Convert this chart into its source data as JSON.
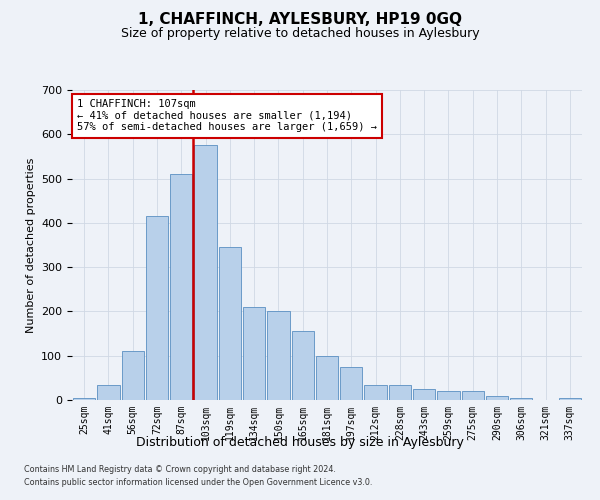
{
  "title": "1, CHAFFINCH, AYLESBURY, HP19 0GQ",
  "subtitle": "Size of property relative to detached houses in Aylesbury",
  "xlabel": "Distribution of detached houses by size in Aylesbury",
  "ylabel": "Number of detached properties",
  "categories": [
    "25sqm",
    "41sqm",
    "56sqm",
    "72sqm",
    "87sqm",
    "103sqm",
    "119sqm",
    "134sqm",
    "150sqm",
    "165sqm",
    "181sqm",
    "197sqm",
    "212sqm",
    "228sqm",
    "243sqm",
    "259sqm",
    "275sqm",
    "290sqm",
    "306sqm",
    "321sqm",
    "337sqm"
  ],
  "bar_heights": [
    5,
    35,
    110,
    415,
    510,
    575,
    345,
    210,
    200,
    155,
    100,
    75,
    35,
    35,
    25,
    20,
    20,
    10,
    5,
    0,
    5
  ],
  "bar_color": "#b8d0ea",
  "bar_edge_color": "#5a8fc2",
  "vline_index": 5,
  "vline_color": "#cc0000",
  "annotation_line1": "1 CHAFFINCH: 107sqm",
  "annotation_line2": "← 41% of detached houses are smaller (1,194)",
  "annotation_line3": "57% of semi-detached houses are larger (1,659) →",
  "annotation_box_facecolor": "#ffffff",
  "annotation_box_edgecolor": "#cc0000",
  "ylim": [
    0,
    700
  ],
  "yticks": [
    0,
    100,
    200,
    300,
    400,
    500,
    600,
    700
  ],
  "footnote1": "Contains HM Land Registry data © Crown copyright and database right 2024.",
  "footnote2": "Contains public sector information licensed under the Open Government Licence v3.0.",
  "bg_color": "#eef2f8",
  "grid_color": "#d0d8e4",
  "title_fontsize": 11,
  "subtitle_fontsize": 9,
  "ylabel_fontsize": 8,
  "xlabel_fontsize": 9
}
